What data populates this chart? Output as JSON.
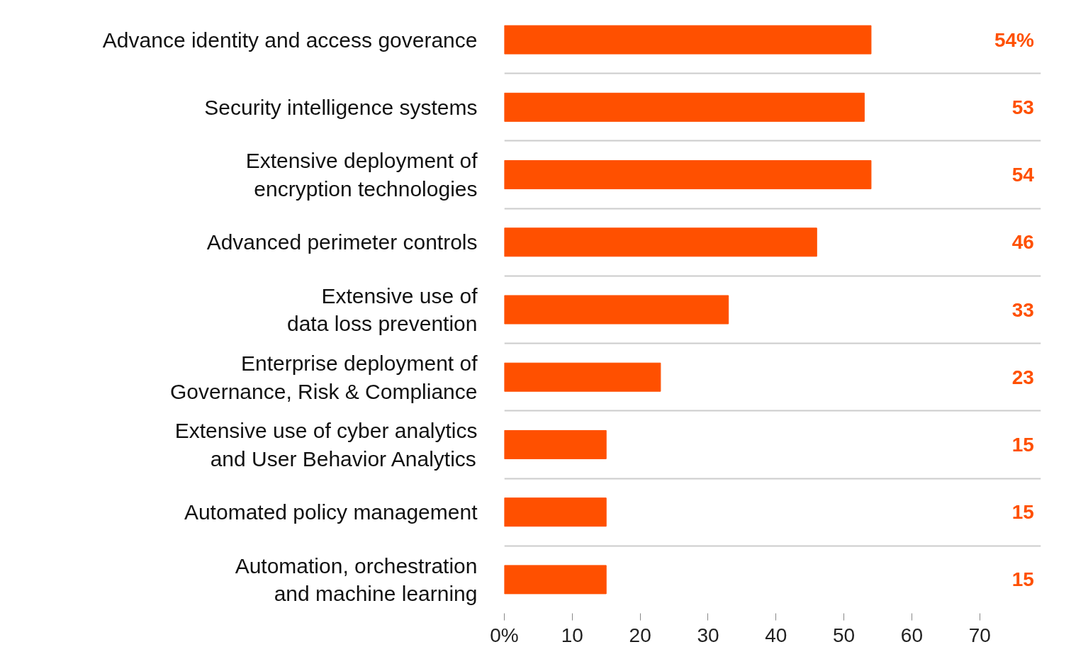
{
  "chart_data": {
    "type": "bar",
    "orientation": "horizontal",
    "categories": [
      "Advance identity and access goverance",
      "Security intelligence systems",
      "Extensive deployment of\nencryption technologies",
      "Advanced perimeter controls",
      "Extensive use of\ndata loss prevention",
      "Enterprise deployment of\nGovernance, Risk & Compliance",
      "Extensive use of cyber analytics\nand User Behavior Analytics",
      "Automated policy management",
      "Automation, orchestration\nand machine learning"
    ],
    "values": [
      54,
      53,
      54,
      46,
      33,
      23,
      15,
      15,
      15
    ],
    "value_labels": [
      "54%",
      "53",
      "54",
      "46",
      "33",
      "23",
      "15",
      "15",
      "15"
    ],
    "color": "#ff5000",
    "xlim": [
      0,
      79
    ],
    "xticks": [
      {
        "value": 0,
        "label": "0%"
      },
      10,
      20,
      30,
      40,
      50,
      60,
      70
    ],
    "grid": "y"
  }
}
